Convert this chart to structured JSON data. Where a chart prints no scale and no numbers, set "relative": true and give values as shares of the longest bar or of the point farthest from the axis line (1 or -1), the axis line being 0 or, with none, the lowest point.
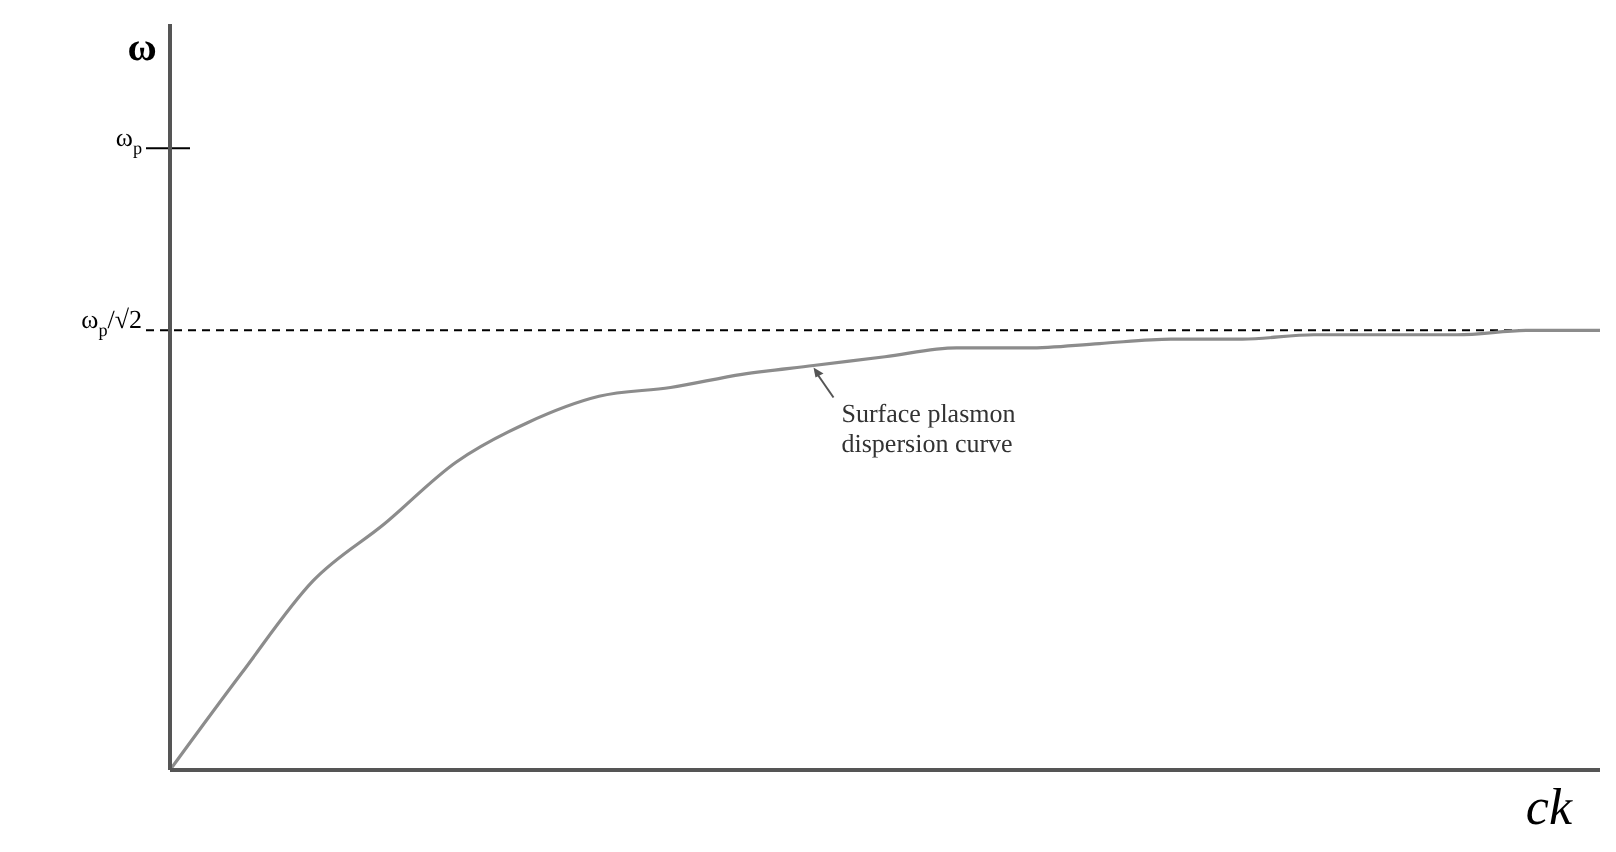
{
  "chart_data": {
    "type": "line",
    "xlabel": "ck",
    "relative": true,
    "categories": [
      null,
      null,
      null,
      null,
      null,
      null,
      null,
      null,
      null,
      null,
      null,
      null,
      null,
      null,
      null,
      null,
      null,
      null,
      null,
      null,
      null
    ],
    "series": [
      {
        "color": "#8c8c8c",
        "values": [
          0,
          0.22,
          0.43,
          0.56,
          0.7,
          0.79,
          0.85,
          0.87,
          0.9,
          0.92,
          0.94,
          0.96,
          0.96,
          0.97,
          0.98,
          0.98,
          0.99,
          0.99,
          0.99,
          1.0,
          1.0
        ]
      }
    ],
    "ref_lines": [
      {
        "axis": "y",
        "value": 1.414,
        "label": "ω$_{p}$",
        "color": "#000000",
        "line_style": "solid"
      },
      {
        "axis": "y",
        "value": 1,
        "label": "ω$_{p}$/√2",
        "color": "#000000",
        "line_style": "dashed"
      }
    ],
    "annotations": [
      "ω",
      "Surface plasmon\ndispersion curve"
    ],
    "line_style": "solid"
  }
}
